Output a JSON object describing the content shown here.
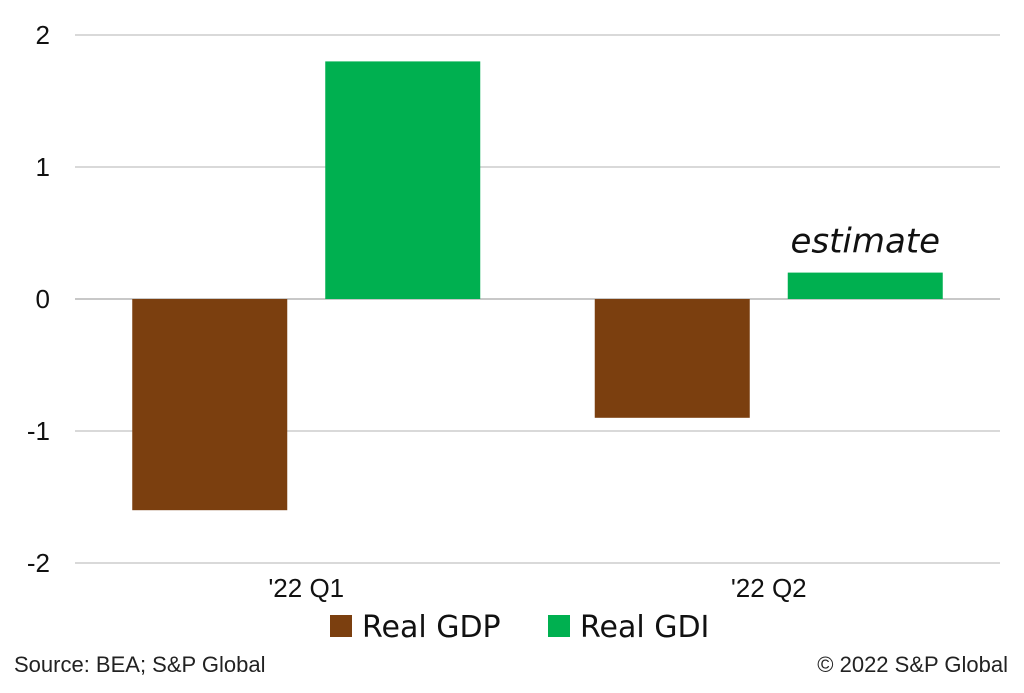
{
  "chart_data": {
    "type": "bar",
    "categories": [
      "'22 Q1",
      "'22 Q2"
    ],
    "series": [
      {
        "name": "Real GDP",
        "values": [
          -1.6,
          -0.9
        ],
        "color": "#7b3f0f"
      },
      {
        "name": "Real GDI",
        "values": [
          1.8,
          0.2
        ],
        "color": "#00b050"
      }
    ],
    "ylim": [
      -2,
      2
    ],
    "yticks": [
      2,
      1,
      0,
      -1,
      -2
    ],
    "grid": true,
    "legend": "bottom",
    "annotation": {
      "text": "estimate",
      "category": "'22 Q2",
      "series": "Real GDI"
    }
  },
  "footer": {
    "source": "Source: BEA; S&P Global",
    "copyright": "© 2022 S&P Global"
  }
}
